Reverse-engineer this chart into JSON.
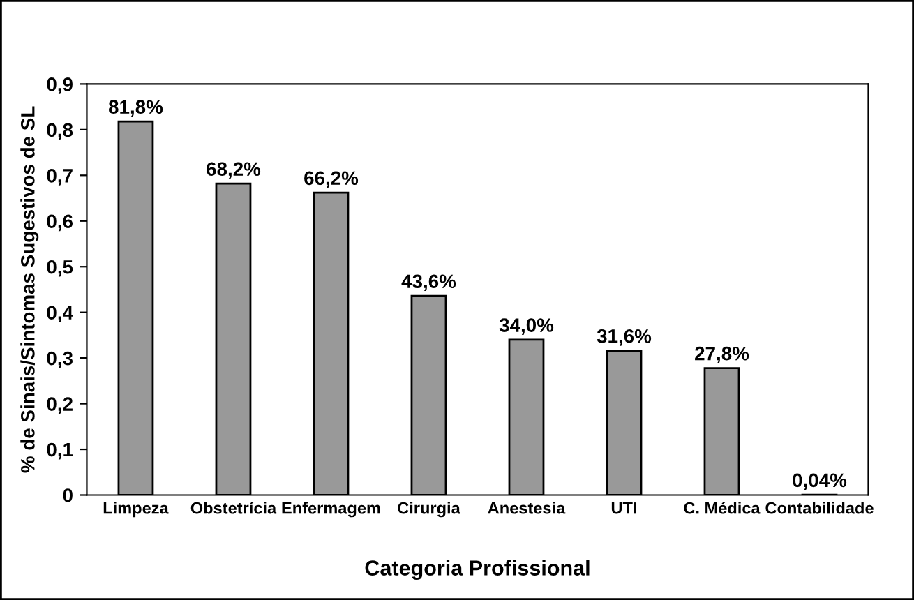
{
  "chart_data": {
    "type": "bar",
    "xlabel": "Categoria Profissional",
    "ylabel": "% de Sinais/Sintomas Sugestivos de SL",
    "categories": [
      "Limpeza",
      "Obstetrícia",
      "Enfermagem",
      "Cirurgia",
      "Anestesia",
      "UTI",
      "C. Médica",
      "Contabilidade"
    ],
    "values": [
      0.818,
      0.682,
      0.662,
      0.436,
      0.34,
      0.316,
      0.278,
      0.0004
    ],
    "value_labels": [
      "81,8%",
      "68,2%",
      "66,2%",
      "43,6%",
      "34,0%",
      "31,6%",
      "27,8%",
      "0,04%"
    ],
    "color": "#999999",
    "ylim": [
      0,
      0.9
    ],
    "yticks": [
      0,
      {
        "value": 0.1,
        "label": "0,1"
      },
      {
        "value": 0.2,
        "label": "0,2"
      },
      {
        "value": 0.3,
        "label": "0,3"
      },
      {
        "value": 0.4,
        "label": "0,4"
      },
      {
        "value": 0.5,
        "label": "0,5"
      },
      {
        "value": 0.6,
        "label": "0,6"
      },
      {
        "value": 0.7,
        "label": "0,7"
      },
      {
        "value": 0.8,
        "label": "0,8"
      },
      {
        "value": 0.9,
        "label": "0,9"
      }
    ],
    "grid": false
  }
}
